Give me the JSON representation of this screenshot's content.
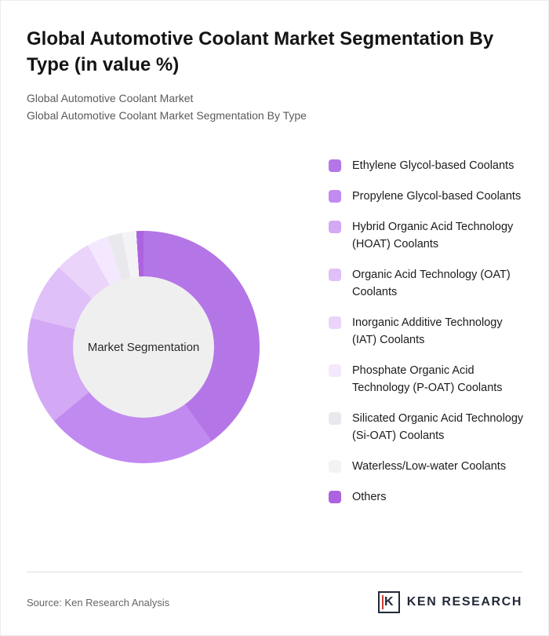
{
  "header": {
    "title": "Global Automotive Coolant Market Segmentation By Type (in value %)",
    "subtitle1": "Global Automotive Coolant Market",
    "subtitle2": "Global Automotive Coolant Market Segmentation By Type"
  },
  "chart_data": {
    "type": "pie",
    "subtype": "donut",
    "title": "Global Automotive Coolant Market Segmentation By Type (in value %)",
    "center_label": "Market Segmentation",
    "legend_position": "right",
    "categories": [
      "Ethylene Glycol-based Coolants",
      "Propylene Glycol-based Coolants",
      "Hybrid Organic Acid Technology (HOAT) Coolants",
      "Organic Acid Technology (OAT) Coolants",
      "Inorganic Additive Technology (IAT) Coolants",
      "Phosphate Organic Acid Technology (P-OAT) Coolants",
      "Silicated Organic Acid Technology (Si-OAT) Coolants",
      "Waterless/Low-water Coolants",
      "Others"
    ],
    "values": [
      40,
      24,
      15,
      8,
      5,
      3,
      2,
      2,
      1
    ],
    "colors": [
      "#b476e6",
      "#c18af0",
      "#d3a8f4",
      "#e0c0f8",
      "#ead4fa",
      "#f3e8fd",
      "#e9e8ec",
      "#f3f3f5",
      "#ad63df"
    ],
    "center_fill": "#efeff0"
  },
  "footer": {
    "source": "Source: Ken Research Analysis",
    "logo_letter": "K",
    "logo_text": "KEN RESEARCH"
  }
}
